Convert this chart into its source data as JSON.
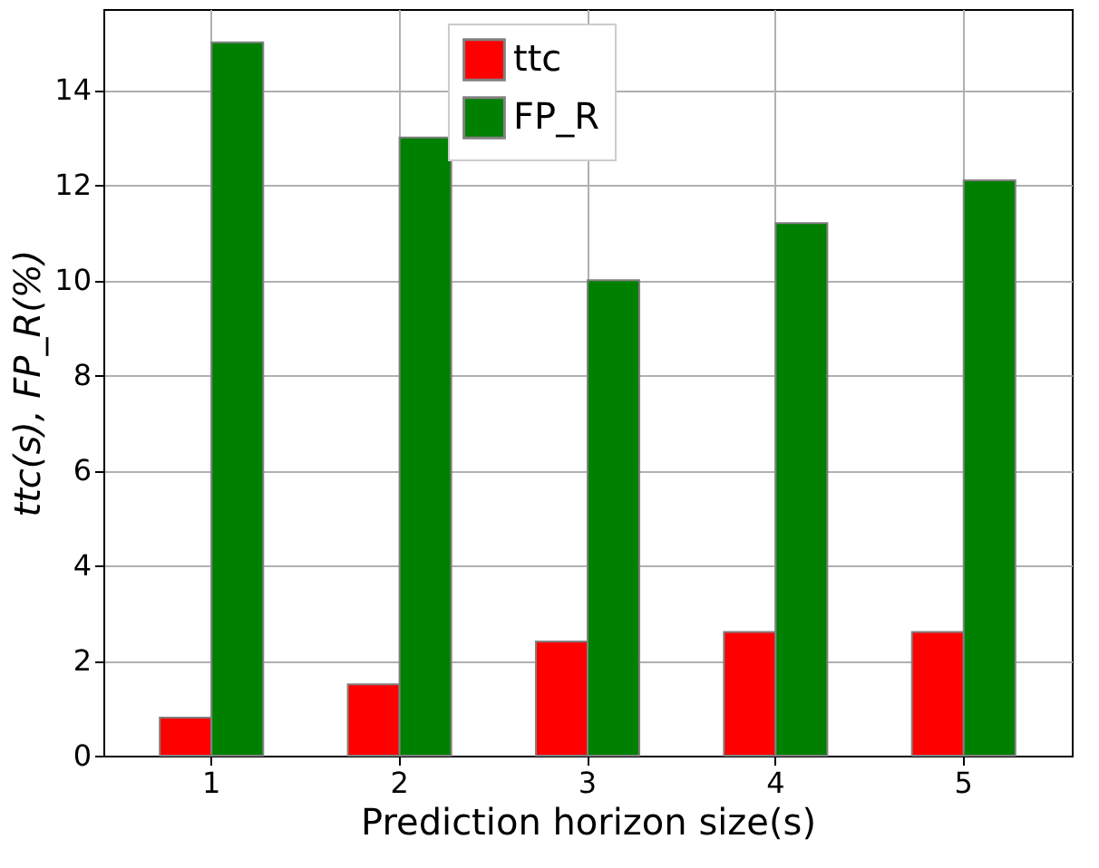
{
  "chart_data": {
    "type": "bar",
    "xlabel": "Prediction horizon size(s)",
    "ylabel": "ttc(s), FP_R(%)",
    "categories": [
      "1",
      "2",
      "3",
      "4",
      "5"
    ],
    "series": [
      {
        "name": "ttc",
        "color": "#ff0000",
        "values": [
          0.8,
          1.5,
          2.4,
          2.6,
          2.6
        ]
      },
      {
        "name": "FP_R",
        "color": "#008000",
        "values": [
          15.0,
          13.0,
          10.0,
          11.2,
          12.1
        ]
      }
    ],
    "ylim": [
      0,
      15.7
    ],
    "yticks": [
      0,
      2,
      4,
      6,
      8,
      10,
      12,
      14
    ],
    "grid": true,
    "legend": "top"
  }
}
